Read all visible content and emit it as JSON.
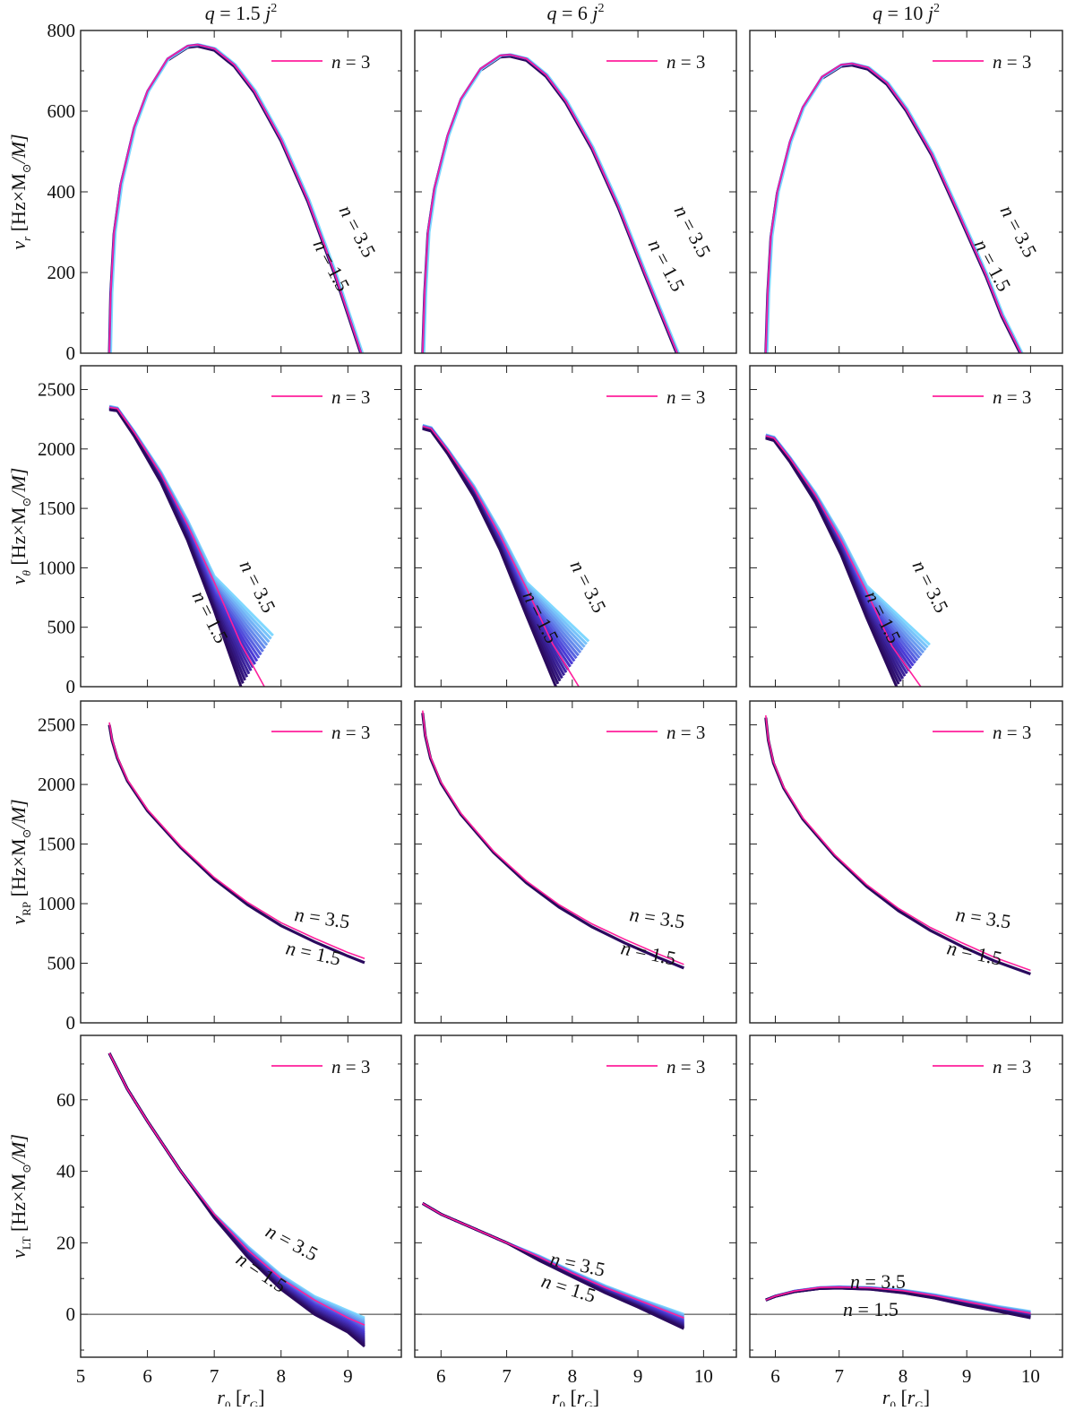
{
  "figure": {
    "columns": [
      {
        "title_q": "q",
        "title_eq": " = 1.5 ",
        "title_j": "j",
        "title_sup": "2"
      },
      {
        "title_q": "q",
        "title_eq": " = 6 ",
        "title_j": "j",
        "title_sup": "2"
      },
      {
        "title_q": "q",
        "title_eq": " = 10 ",
        "title_j": "j",
        "title_sup": "2"
      }
    ],
    "xlabel": {
      "sym": "r",
      "sub": "0",
      "unit_open": " [",
      "unit_sym": "r",
      "unit_sub": "G",
      "unit_close": "]"
    },
    "row_ylabels": [
      {
        "nu": "ν",
        "sub": "r",
        "rest": " [Hz×M",
        "sun": "⊙",
        "tail": "/M]"
      },
      {
        "nu": "ν",
        "sub": "θ",
        "rest": " [Hz×M",
        "sun": "⊙",
        "tail": "/M]"
      },
      {
        "nu": "ν",
        "sub": "RP",
        "rest": " [Hz×M",
        "sun": "⊙",
        "tail": "/M]"
      },
      {
        "nu": "ν",
        "sub": "LT",
        "rest": " [Hz×M",
        "sun": "⊙",
        "tail": "/M]"
      }
    ],
    "legend_label": "n = 3",
    "curve_labels": {
      "upper": "n = 3.5",
      "lower": "n = 1.5"
    },
    "colors": {
      "highlight": "#ff1f9c",
      "dark": "#2a0a5e",
      "mid": "#4b3bd6",
      "light": "#7fd8ff"
    }
  },
  "chart_data": [
    {
      "type": "line",
      "row": 0,
      "col": 0,
      "title": "q = 1.5 j^2",
      "ylabel": "ν_r [Hz×M⊙/M]",
      "xlim": [
        5,
        9.8
      ],
      "ylim": [
        0,
        800
      ],
      "xticks": [
        5,
        6,
        7,
        8,
        9
      ],
      "yticks": [
        0,
        200,
        400,
        600,
        800
      ],
      "series": [
        {
          "name": "n = 3",
          "x": [
            5.43,
            5.45,
            5.5,
            5.6,
            5.8,
            6.0,
            6.3,
            6.6,
            6.75,
            7.0,
            7.3,
            7.6,
            8.0,
            8.4,
            8.8,
            9.0,
            9.2
          ],
          "y": [
            0,
            150,
            300,
            420,
            560,
            650,
            730,
            762,
            765,
            755,
            715,
            650,
            530,
            380,
            200,
            100,
            0
          ]
        }
      ]
    },
    {
      "type": "line",
      "row": 0,
      "col": 1,
      "title": "q = 6 j^2",
      "xlim": [
        5.6,
        10.5
      ],
      "ylim": [
        0,
        800
      ],
      "xticks": [
        6,
        7,
        8,
        9,
        10
      ],
      "series": [
        {
          "name": "n = 3",
          "x": [
            5.72,
            5.75,
            5.8,
            5.9,
            6.1,
            6.3,
            6.6,
            6.9,
            7.05,
            7.3,
            7.6,
            7.9,
            8.3,
            8.7,
            9.1,
            9.35,
            9.6
          ],
          "y": [
            0,
            150,
            300,
            410,
            540,
            630,
            705,
            738,
            740,
            730,
            690,
            625,
            510,
            365,
            200,
            100,
            0
          ]
        }
      ]
    },
    {
      "type": "line",
      "row": 0,
      "col": 2,
      "title": "q = 10 j^2",
      "xlim": [
        5.6,
        10.5
      ],
      "ylim": [
        0,
        800
      ],
      "xticks": [
        6,
        7,
        8,
        9,
        10
      ],
      "series": [
        {
          "name": "n = 3",
          "x": [
            5.85,
            5.88,
            5.93,
            6.03,
            6.23,
            6.43,
            6.73,
            7.03,
            7.2,
            7.45,
            7.75,
            8.05,
            8.45,
            8.85,
            9.3,
            9.55,
            9.85
          ],
          "y": [
            0,
            150,
            290,
            400,
            525,
            610,
            685,
            715,
            718,
            708,
            670,
            605,
            495,
            355,
            195,
            95,
            0
          ]
        }
      ]
    },
    {
      "type": "line",
      "row": 1,
      "col": 0,
      "ylabel": "ν_θ [Hz×M⊙/M]",
      "xlim": [
        5,
        9.8
      ],
      "ylim": [
        0,
        2700
      ],
      "yticks": [
        0,
        500,
        1000,
        1500,
        2000,
        2500
      ],
      "series": [
        {
          "name": "n = 1.5",
          "x": [
            5.43,
            5.55,
            5.8,
            6.2,
            6.6,
            7.0,
            7.4
          ],
          "y": [
            2330,
            2320,
            2110,
            1720,
            1230,
            640,
            0
          ]
        },
        {
          "name": "n = 3",
          "x": [
            5.43,
            5.55,
            5.8,
            6.2,
            6.6,
            7.0,
            7.4,
            7.75
          ],
          "y": [
            2350,
            2340,
            2140,
            1790,
            1360,
            880,
            360,
            0
          ]
        },
        {
          "name": "n = 3.5",
          "x": [
            5.43,
            5.55,
            5.8,
            6.2,
            6.6,
            7.0,
            7.4,
            7.88
          ],
          "y": [
            2360,
            2345,
            2150,
            1810,
            1400,
            930,
            430,
            0
          ]
        }
      ]
    },
    {
      "type": "line",
      "row": 1,
      "col": 1,
      "xlim": [
        5.6,
        10.5
      ],
      "ylim": [
        0,
        2700
      ],
      "series": [
        {
          "name": "n = 1.5",
          "x": [
            5.72,
            5.85,
            6.1,
            6.5,
            6.9,
            7.3,
            7.75
          ],
          "y": [
            2170,
            2150,
            1960,
            1600,
            1150,
            600,
            0
          ]
        },
        {
          "name": "n = 3",
          "x": [
            5.72,
            5.85,
            6.1,
            6.5,
            6.9,
            7.3,
            7.7,
            8.1
          ],
          "y": [
            2190,
            2170,
            1990,
            1670,
            1270,
            830,
            360,
            0
          ]
        },
        {
          "name": "n = 3.5",
          "x": [
            5.72,
            5.85,
            6.1,
            6.5,
            6.9,
            7.3,
            7.7,
            8.25
          ],
          "y": [
            2200,
            2180,
            2000,
            1690,
            1310,
            880,
            420,
            0
          ]
        }
      ]
    },
    {
      "type": "line",
      "row": 1,
      "col": 2,
      "xlim": [
        5.6,
        10.5
      ],
      "ylim": [
        0,
        2700
      ],
      "series": [
        {
          "name": "n = 1.5",
          "x": [
            5.85,
            5.98,
            6.23,
            6.63,
            7.03,
            7.43,
            7.9
          ],
          "y": [
            2090,
            2070,
            1890,
            1550,
            1110,
            580,
            0
          ]
        },
        {
          "name": "n = 3",
          "x": [
            5.85,
            5.98,
            6.23,
            6.63,
            7.03,
            7.43,
            7.83,
            8.28
          ],
          "y": [
            2110,
            2090,
            1920,
            1610,
            1230,
            800,
            340,
            0
          ]
        },
        {
          "name": "n = 3.5",
          "x": [
            5.85,
            5.98,
            6.23,
            6.63,
            7.03,
            7.43,
            7.83,
            8.42
          ],
          "y": [
            2120,
            2100,
            1930,
            1630,
            1270,
            850,
            400,
            0
          ]
        }
      ]
    },
    {
      "type": "line",
      "row": 2,
      "col": 0,
      "ylabel": "ν_RP [Hz×M⊙/M]",
      "xlim": [
        5,
        9.8
      ],
      "ylim": [
        0,
        2700
      ],
      "yticks": [
        0,
        500,
        1000,
        1500,
        2000,
        2500
      ],
      "series": [
        {
          "name": "n = 3",
          "x": [
            5.43,
            5.47,
            5.55,
            5.7,
            6.0,
            6.5,
            7.0,
            7.5,
            8.0,
            8.5,
            9.0,
            9.25
          ],
          "y": [
            2520,
            2380,
            2230,
            2040,
            1790,
            1480,
            1220,
            1010,
            840,
            710,
            590,
            540
          ]
        },
        {
          "name": "n = 1.5",
          "x": [
            5.43,
            5.47,
            5.55,
            5.7,
            6.0,
            6.5,
            7.0,
            7.5,
            8.0,
            8.5,
            9.0,
            9.25
          ],
          "y": [
            2500,
            2370,
            2220,
            2030,
            1780,
            1470,
            1205,
            990,
            815,
            680,
            560,
            505
          ]
        }
      ]
    },
    {
      "type": "line",
      "row": 2,
      "col": 1,
      "xlim": [
        5.6,
        10.5
      ],
      "ylim": [
        0,
        2700
      ],
      "series": [
        {
          "name": "n = 3",
          "x": [
            5.72,
            5.76,
            5.84,
            6.0,
            6.3,
            6.8,
            7.3,
            7.8,
            8.3,
            8.8,
            9.3,
            9.7
          ],
          "y": [
            2620,
            2420,
            2230,
            2020,
            1760,
            1440,
            1190,
            990,
            830,
            700,
            580,
            490
          ]
        },
        {
          "name": "n = 1.5",
          "x": [
            5.72,
            5.76,
            5.84,
            6.0,
            6.3,
            6.8,
            7.3,
            7.8,
            8.3,
            8.8,
            9.3,
            9.7
          ],
          "y": [
            2600,
            2410,
            2220,
            2010,
            1750,
            1430,
            1175,
            970,
            805,
            670,
            550,
            460
          ]
        }
      ]
    },
    {
      "type": "line",
      "row": 2,
      "col": 2,
      "xlim": [
        5.6,
        10.5
      ],
      "ylim": [
        0,
        2700
      ],
      "series": [
        {
          "name": "n = 3",
          "x": [
            5.85,
            5.89,
            5.97,
            6.13,
            6.43,
            6.93,
            7.43,
            7.93,
            8.43,
            8.93,
            9.43,
            10.0
          ],
          "y": [
            2580,
            2380,
            2190,
            1980,
            1720,
            1410,
            1160,
            960,
            800,
            670,
            550,
            440
          ]
        },
        {
          "name": "n = 1.5",
          "x": [
            5.85,
            5.89,
            5.97,
            6.13,
            6.43,
            6.93,
            7.43,
            7.93,
            8.43,
            8.93,
            9.43,
            10.0
          ],
          "y": [
            2560,
            2370,
            2180,
            1970,
            1710,
            1400,
            1145,
            940,
            775,
            640,
            520,
            410
          ]
        }
      ]
    },
    {
      "type": "line",
      "row": 3,
      "col": 0,
      "ylabel": "ν_LT [Hz×M⊙/M]",
      "xlabel": "r_0 [r_G]",
      "xlim": [
        5,
        9.8
      ],
      "ylim": [
        -12,
        78
      ],
      "yticks": [
        0,
        20,
        40,
        60
      ],
      "series": [
        {
          "name": "n = 1.5",
          "x": [
            5.43,
            5.7,
            6.0,
            6.5,
            7.0,
            7.5,
            8.0,
            8.5,
            9.0,
            9.25
          ],
          "y": [
            73,
            63,
            54,
            40,
            27,
            16,
            7,
            0,
            -5,
            -9
          ]
        },
        {
          "name": "n = 3",
          "x": [
            5.43,
            5.7,
            6.0,
            6.5,
            7.0,
            7.5,
            8.0,
            8.5,
            9.0,
            9.25
          ],
          "y": [
            73,
            63,
            54,
            40,
            28,
            18,
            10,
            4,
            -1,
            -3
          ]
        },
        {
          "name": "n = 3.5",
          "x": [
            5.43,
            5.7,
            6.0,
            6.5,
            7.0,
            7.5,
            8.0,
            8.5,
            9.0,
            9.25
          ],
          "y": [
            73,
            63,
            54,
            40,
            28,
            19,
            11,
            5,
            1,
            -1
          ]
        }
      ]
    },
    {
      "type": "line",
      "row": 3,
      "col": 1,
      "xlabel": "r_0 [r_G]",
      "xlim": [
        5.6,
        10.5
      ],
      "ylim": [
        -12,
        78
      ],
      "series": [
        {
          "name": "n = 1.5",
          "x": [
            5.72,
            6.0,
            6.5,
            7.0,
            7.5,
            8.0,
            8.5,
            9.0,
            9.7
          ],
          "y": [
            31,
            28,
            24,
            20,
            15,
            10.5,
            6,
            2,
            -4
          ]
        },
        {
          "name": "n = 3",
          "x": [
            5.72,
            6.0,
            6.5,
            7.0,
            7.5,
            8.0,
            8.5,
            9.0,
            9.7
          ],
          "y": [
            31,
            28,
            24,
            20,
            16,
            11.5,
            7.5,
            4,
            -1
          ]
        },
        {
          "name": "n = 3.5",
          "x": [
            5.72,
            6.0,
            6.5,
            7.0,
            7.5,
            8.0,
            8.5,
            9.0,
            9.7
          ],
          "y": [
            31,
            28,
            24,
            20,
            16.3,
            12,
            8,
            4.5,
            0
          ]
        }
      ]
    },
    {
      "type": "line",
      "row": 3,
      "col": 2,
      "xlabel": "r_0 [r_G]",
      "xlim": [
        5.6,
        10.5
      ],
      "ylim": [
        -12,
        78
      ],
      "xticks": [
        6,
        7,
        8,
        9,
        10
      ],
      "series": [
        {
          "name": "n = 1.5",
          "x": [
            5.85,
            6.0,
            6.3,
            6.7,
            7.0,
            7.5,
            8.0,
            8.5,
            9.0,
            9.5,
            10.0
          ],
          "y": [
            4,
            5,
            6.3,
            7.2,
            7.3,
            7.0,
            6.0,
            4.5,
            2.5,
            0.8,
            -1
          ]
        },
        {
          "name": "n = 3",
          "x": [
            5.85,
            6.0,
            6.3,
            6.7,
            7.0,
            7.5,
            8.0,
            8.5,
            9.0,
            9.5,
            10.0
          ],
          "y": [
            4,
            5.1,
            6.5,
            7.5,
            7.6,
            7.4,
            6.6,
            5.2,
            3.5,
            1.8,
            0.3
          ]
        },
        {
          "name": "n = 3.5",
          "x": [
            5.85,
            6.0,
            6.3,
            6.7,
            7.0,
            7.5,
            8.0,
            8.5,
            9.0,
            9.5,
            10.0
          ],
          "y": [
            4,
            5.1,
            6.5,
            7.5,
            7.7,
            7.5,
            6.8,
            5.5,
            3.9,
            2.2,
            0.8
          ]
        }
      ]
    }
  ]
}
